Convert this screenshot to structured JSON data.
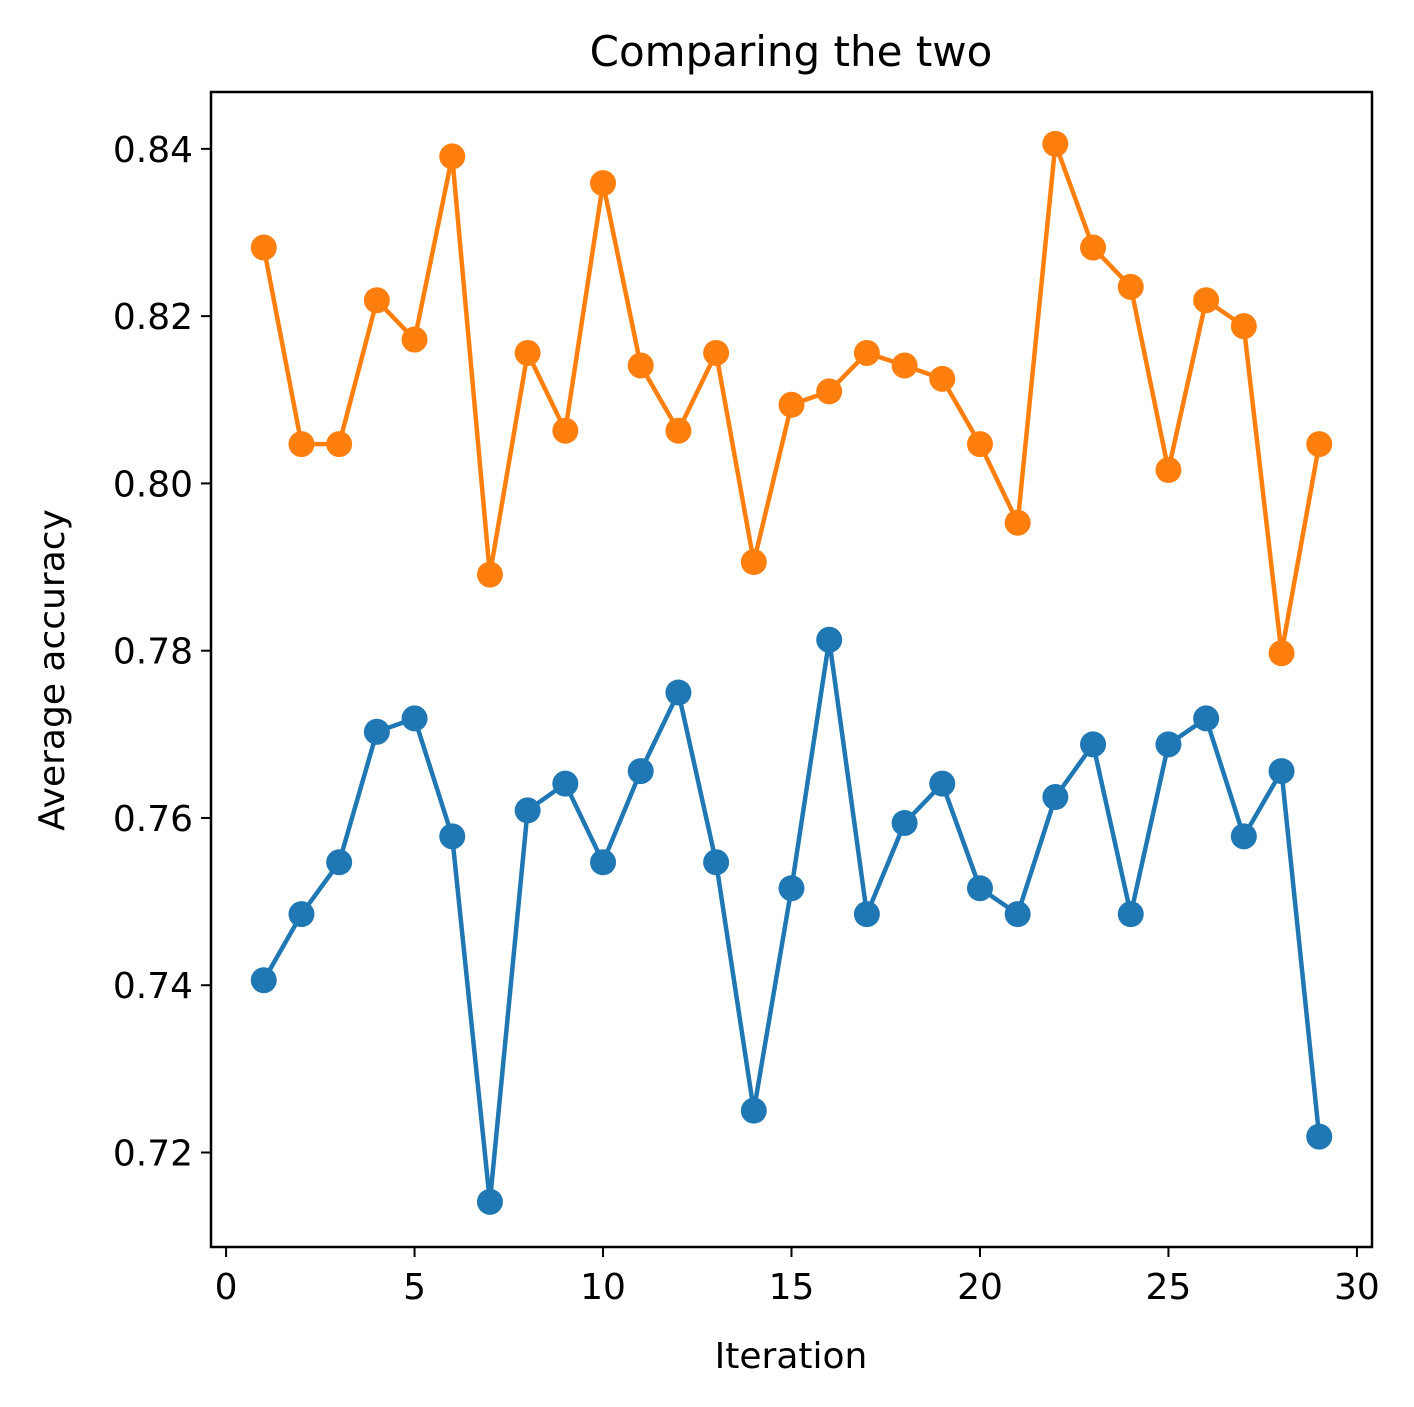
{
  "chart_data": {
    "type": "line",
    "title": "Comparing the two",
    "xlabel": "Iteration",
    "ylabel": "Average accuracy",
    "xlim": [
      -0.4,
      30.4
    ],
    "ylim": [
      0.7087,
      0.8468
    ],
    "x_ticks": [
      0,
      5,
      10,
      15,
      20,
      25,
      30
    ],
    "x_tick_labels": [
      "0",
      "5",
      "10",
      "15",
      "20",
      "25",
      "30"
    ],
    "y_ticks": [
      0.72,
      0.74,
      0.76,
      0.78,
      0.8,
      0.82,
      0.84
    ],
    "y_tick_labels": [
      "0.72",
      "0.74",
      "0.76",
      "0.78",
      "0.80",
      "0.82",
      "0.84"
    ],
    "grid": false,
    "x": [
      1,
      2,
      3,
      4,
      5,
      6,
      7,
      8,
      9,
      10,
      11,
      12,
      13,
      14,
      15,
      16,
      17,
      18,
      19,
      20,
      21,
      22,
      23,
      24,
      25,
      26,
      27,
      28,
      29
    ],
    "series": [
      {
        "color": "#1f77b4",
        "values": [
          0.7406,
          0.7485,
          0.7547,
          0.7703,
          0.7719,
          0.7578,
          0.7141,
          0.7609,
          0.7641,
          0.7547,
          0.7656,
          0.775,
          0.7547,
          0.725,
          0.7516,
          0.7813,
          0.7485,
          0.7594,
          0.7641,
          0.7516,
          0.7485,
          0.7625,
          0.7688,
          0.7485,
          0.7688,
          0.7719,
          0.7578,
          0.7656,
          0.7219
        ]
      },
      {
        "color": "#ff7f0e",
        "values": [
          0.8282,
          0.8047,
          0.8047,
          0.8219,
          0.8172,
          0.8391,
          0.7891,
          0.8156,
          0.8063,
          0.8359,
          0.8141,
          0.8063,
          0.8156,
          0.7906,
          0.8094,
          0.811,
          0.8156,
          0.8141,
          0.8125,
          0.8047,
          0.7953,
          0.8406,
          0.8282,
          0.8235,
          0.8016,
          0.8219,
          0.8188,
          0.7797,
          0.8047
        ]
      }
    ]
  }
}
